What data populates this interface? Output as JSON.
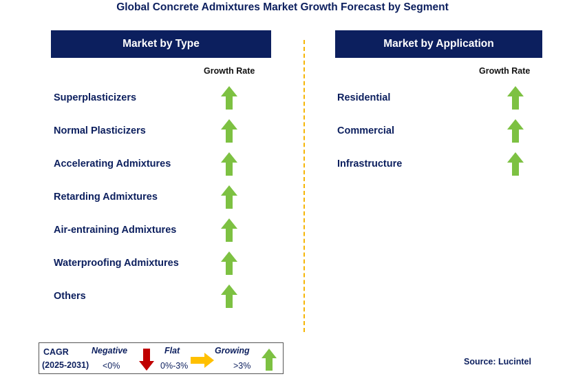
{
  "title": "Global Concrete Admixtures Market Growth Forecast by Segment",
  "left_panel": {
    "header": "Market by Type",
    "growth_rate_label": "Growth Rate",
    "items": [
      {
        "label": "Superplasticizers",
        "trend": "growing"
      },
      {
        "label": "Normal Plasticizers",
        "trend": "growing"
      },
      {
        "label": "Accelerating Admixtures",
        "trend": "growing"
      },
      {
        "label": "Retarding Admixtures",
        "trend": "growing"
      },
      {
        "label": "Air-entraining Admixtures",
        "trend": "growing"
      },
      {
        "label": "Waterproofing Admixtures",
        "trend": "growing"
      },
      {
        "label": "Others",
        "trend": "growing"
      }
    ]
  },
  "right_panel": {
    "header": "Market by Application",
    "growth_rate_label": "Growth Rate",
    "items": [
      {
        "label": "Residential",
        "trend": "growing"
      },
      {
        "label": "Commercial",
        "trend": "growing"
      },
      {
        "label": "Infrastructure",
        "trend": "growing"
      }
    ]
  },
  "legend": {
    "cagr_label": "CAGR",
    "period": "(2025-2031)",
    "negative": {
      "label": "Negative",
      "range": "<0%",
      "icon": "red-down-arrow-icon"
    },
    "flat": {
      "label": "Flat",
      "range": "0%-3%",
      "icon": "orange-right-arrow-icon"
    },
    "growing": {
      "label": "Growing",
      "range": ">3%",
      "icon": "green-up-arrow-icon"
    }
  },
  "source": "Source: Lucintel",
  "colors": {
    "navy": "#0c1f5e",
    "green_arrow": "#7dc142",
    "red_arrow": "#c00000",
    "orange_arrow": "#ffc000",
    "divider": "#f5b400"
  }
}
